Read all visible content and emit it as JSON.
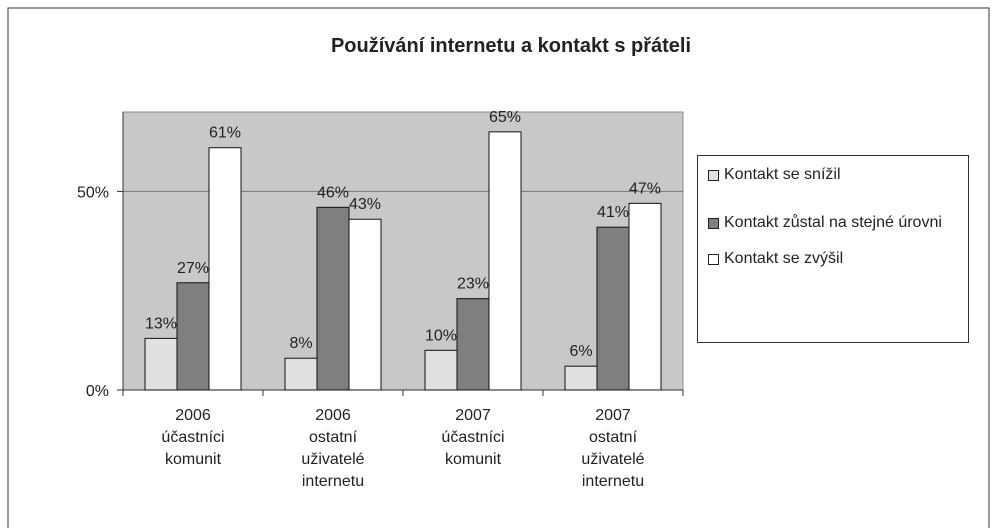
{
  "chart_data": {
    "type": "bar",
    "title": "Používání internetu a kontakt s přáteli",
    "categories": [
      [
        "2006",
        "účastníci",
        "komunit"
      ],
      [
        "2006",
        "ostatní",
        "uživatelé",
        "internetu"
      ],
      [
        "2007",
        "účastníci",
        "komunit"
      ],
      [
        "2007",
        "ostatní",
        "uživatelé",
        "internetu"
      ]
    ],
    "series": [
      {
        "name": "Kontakt se snížil",
        "color": "#e0e0e0",
        "values": [
          13,
          8,
          10,
          6
        ],
        "value_labels": [
          "13%",
          "8%",
          "10%",
          "6%"
        ]
      },
      {
        "name": "Kontakt zůstal na stejné úrovni",
        "color": "#7f7f7f",
        "values": [
          27,
          46,
          23,
          41
        ],
        "value_labels": [
          "27%",
          "46%",
          "23%",
          "41%"
        ]
      },
      {
        "name": "Kontakt se zvýšil",
        "color": "#ffffff",
        "values": [
          61,
          43,
          65,
          47
        ],
        "value_labels": [
          "61%",
          "43%",
          "65%",
          "47%"
        ]
      }
    ],
    "ylim": [
      0,
      70
    ],
    "yticks": [
      {
        "value": 0,
        "label": "0%"
      },
      {
        "value": 50,
        "label": "50%"
      }
    ],
    "grid": true,
    "legend": "right"
  }
}
